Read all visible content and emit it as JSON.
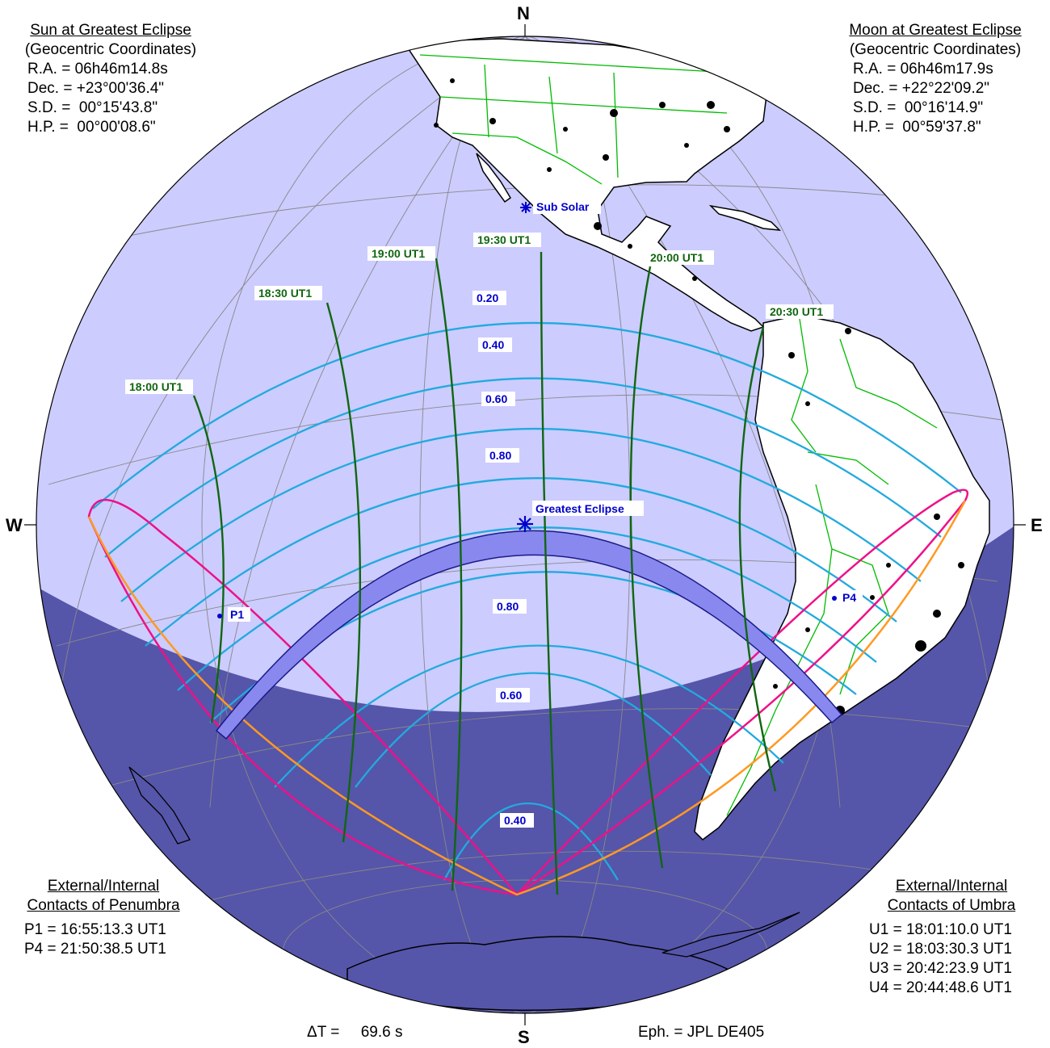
{
  "sun": {
    "title": "Sun at Greatest Eclipse",
    "subtitle": "(Geocentric Coordinates)",
    "rows": [
      "R.A. = 06h46m14.8s",
      "Dec. = +23°00'36.4\"",
      "S.D. =  00°15'43.8\"",
      "H.P. =  00°00'08.6\""
    ]
  },
  "moon": {
    "title": "Moon at Greatest Eclipse",
    "subtitle": "(Geocentric Coordinates)",
    "rows": [
      "R.A. = 06h46m17.9s",
      "Dec. = +22°22'09.2\"",
      "S.D. =  00°16'14.9\"",
      "H.P. =  00°59'37.8\""
    ]
  },
  "penumbra": {
    "title_line1": "External/Internal",
    "title_line2": "Contacts of Penumbra",
    "rows": [
      "P1 = 16:55:13.3 UT1",
      "P4 = 21:50:38.5 UT1"
    ]
  },
  "umbra": {
    "title_line1": "External/Internal",
    "title_line2": "Contacts of Umbra",
    "rows": [
      "U1 = 18:01:10.0 UT1",
      "U2 = 18:03:30.3 UT1",
      "U3 = 20:42:23.9 UT1",
      "U4 = 20:44:48.6 UT1"
    ]
  },
  "compass": {
    "north": "N",
    "south": "S",
    "west": "W",
    "east": "E"
  },
  "footer": {
    "delta_t": "ΔT =     69.6 s",
    "ephemeris": "Eph. = JPL DE405"
  },
  "map": {
    "time_labels": [
      "18:00 UT1",
      "18:30 UT1",
      "19:00 UT1",
      "19:30 UT1",
      "20:00 UT1",
      "20:30 UT1"
    ],
    "magnitude_labels_north": [
      "0.20",
      "0.40",
      "0.60",
      "0.80"
    ],
    "magnitude_labels_south": [
      "0.80",
      "0.60",
      "0.40"
    ],
    "sub_solar": "Sub Solar",
    "greatest_eclipse": "Greatest Eclipse",
    "p1": "P1",
    "p4": "P4"
  },
  "colors": {
    "ocean": "#ccccff",
    "night": "#5555aa",
    "land": "#ffffff",
    "borders": "#00bb00",
    "magnitude_lines": "#22aadd",
    "time_lines": "#116611",
    "time_label_text": "#116611",
    "penumbra_limit": "#ee1188",
    "rise_set": "#ff9922",
    "umbra_path": "#8888ee",
    "blue_label_text": "#0000cc"
  }
}
